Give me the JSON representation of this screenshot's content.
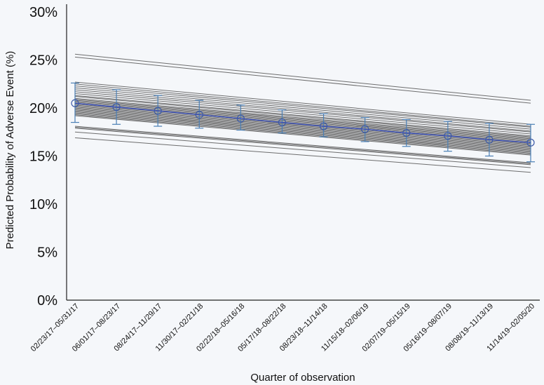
{
  "chart_data": {
    "type": "line",
    "ylabel": "Predicted Probability of Adverse Event (%)",
    "xlabel": "Quarter of observation",
    "ylim": [
      0,
      30
    ],
    "yticks": [
      0,
      5,
      10,
      15,
      20,
      25,
      30
    ],
    "ytick_labels": [
      "0%",
      "5%",
      "10%",
      "15%",
      "20%",
      "25%",
      "30%"
    ],
    "categories": [
      "02/23/17–05/31/17",
      "06/01/17–08/23/17",
      "08/24/17–11/29/17",
      "11/30/17–02/21/18",
      "02/22/18–05/16/18",
      "05/17/18–08/22/18",
      "08/23/18–11/14/18",
      "11/15/18–02/06/19",
      "02/07/19–05/15/19",
      "05/16/19–08/07/19",
      "08/08/19–11/13/19",
      "11/14/19–02/05/20"
    ],
    "mean": {
      "values": [
        20.5,
        20.1,
        19.7,
        19.3,
        18.9,
        18.5,
        18.1,
        17.8,
        17.4,
        17.1,
        16.7,
        16.4
      ],
      "lower": [
        18.5,
        18.3,
        18.1,
        17.9,
        17.7,
        17.4,
        17.0,
        16.5,
        16.0,
        15.5,
        15.0,
        14.4
      ],
      "upper": [
        22.6,
        21.9,
        21.3,
        20.8,
        20.3,
        19.8,
        19.4,
        19.0,
        18.8,
        18.6,
        18.4,
        18.3
      ],
      "color": "#3a4fb8"
    },
    "background_lines": [
      [
        25.6,
        20.8
      ],
      [
        25.3,
        20.5
      ],
      [
        22.7,
        18.3
      ],
      [
        22.5,
        18.1
      ],
      [
        22.3,
        18.0
      ],
      [
        22.1,
        17.8
      ],
      [
        21.9,
        17.6
      ],
      [
        21.7,
        17.5
      ],
      [
        21.5,
        17.3
      ],
      [
        21.3,
        17.1
      ],
      [
        21.2,
        17.0
      ],
      [
        21.0,
        16.9
      ],
      [
        20.9,
        16.8
      ],
      [
        20.8,
        16.7
      ],
      [
        20.7,
        16.6
      ],
      [
        20.6,
        16.5
      ],
      [
        20.5,
        16.4
      ],
      [
        20.4,
        16.3
      ],
      [
        20.3,
        16.2
      ],
      [
        20.2,
        16.1
      ],
      [
        20.1,
        16.0
      ],
      [
        20.0,
        15.9
      ],
      [
        19.9,
        15.8
      ],
      [
        19.8,
        15.7
      ],
      [
        19.7,
        15.6
      ],
      [
        19.6,
        15.5
      ],
      [
        19.5,
        15.4
      ],
      [
        19.4,
        15.3
      ],
      [
        19.3,
        15.2
      ],
      [
        19.2,
        15.1
      ],
      [
        18.1,
        14.3
      ],
      [
        18.0,
        14.2
      ],
      [
        17.9,
        14.1
      ],
      [
        17.5,
        13.8
      ],
      [
        16.9,
        13.3
      ]
    ],
    "background_color": "#555555",
    "error_bar_color": "#4a7fb5"
  }
}
